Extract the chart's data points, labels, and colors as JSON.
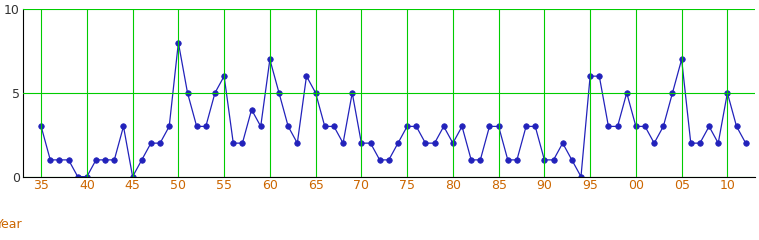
{
  "years": [
    1935,
    1936,
    1937,
    1938,
    1939,
    1940,
    1941,
    1942,
    1943,
    1944,
    1945,
    1946,
    1947,
    1948,
    1949,
    1950,
    1951,
    1952,
    1953,
    1954,
    1955,
    1956,
    1957,
    1958,
    1959,
    1960,
    1961,
    1962,
    1963,
    1964,
    1965,
    1966,
    1967,
    1968,
    1969,
    1970,
    1971,
    1972,
    1973,
    1974,
    1975,
    1976,
    1977,
    1978,
    1979,
    1980,
    1981,
    1982,
    1983,
    1984,
    1985,
    1986,
    1987,
    1988,
    1989,
    1990,
    1991,
    1992,
    1993,
    1994,
    1995,
    1996,
    1997,
    1998,
    1999,
    2000,
    2001,
    2002,
    2003,
    2004,
    2005,
    2006,
    2007,
    2008,
    2009,
    2010,
    2011,
    2012
  ],
  "values": [
    3,
    1,
    1,
    1,
    0,
    0,
    1,
    1,
    1,
    3,
    0,
    1,
    2,
    2,
    3,
    8,
    5,
    3,
    3,
    5,
    6,
    2,
    2,
    4,
    3,
    7,
    5,
    3,
    2,
    6,
    5,
    3,
    3,
    2,
    5,
    2,
    2,
    1,
    1,
    2,
    3,
    3,
    2,
    2,
    3,
    2,
    3,
    1,
    1,
    3,
    3,
    1,
    1,
    3,
    3,
    1,
    1,
    2,
    1,
    0,
    6,
    6,
    3,
    3,
    5,
    3,
    3,
    2,
    3,
    5,
    7,
    2,
    2,
    3,
    2,
    5,
    3,
    2
  ],
  "line_color": "#2222bb",
  "marker_color": "#2222bb",
  "grid_color": "#00cc00",
  "bg_color": "#ffffff",
  "xlabel": "Year",
  "ylim": [
    0,
    10
  ],
  "yticks": [
    0,
    5,
    10
  ],
  "xtick_labels": [
    "35",
    "40",
    "45",
    "50",
    "55",
    "60",
    "65",
    "70",
    "75",
    "80",
    "85",
    "90",
    "95",
    "00",
    "05",
    "10"
  ],
  "xtick_positions": [
    1935,
    1940,
    1945,
    1950,
    1955,
    1960,
    1965,
    1970,
    1975,
    1980,
    1985,
    1990,
    1995,
    2000,
    2005,
    2010
  ]
}
